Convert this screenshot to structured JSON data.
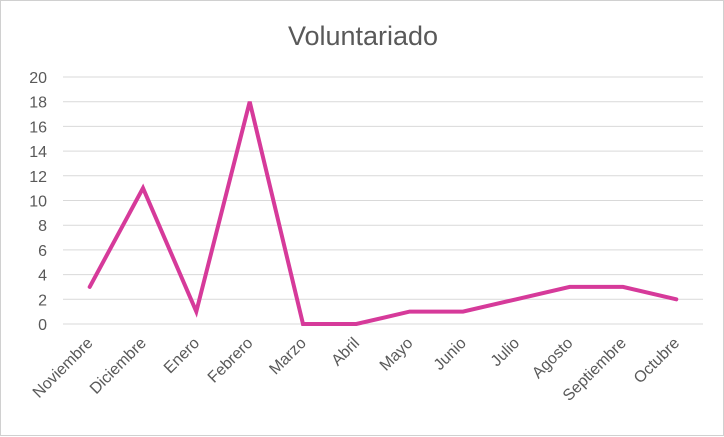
{
  "chart_data": {
    "type": "line",
    "title": "Voluntariado",
    "xlabel": "",
    "ylabel": "",
    "categories": [
      "Noviembre",
      "Diciembre",
      "Enero",
      "Febrero",
      "Marzo",
      "Abril",
      "Mayo",
      "Junio",
      "Julio",
      "Agosto",
      "Septiembre",
      "Octubre"
    ],
    "values": [
      3,
      11,
      1,
      18,
      0,
      0,
      1,
      1,
      2,
      3,
      3,
      2
    ],
    "ylim": [
      0,
      20
    ],
    "yticks": [
      "0",
      "2",
      "4",
      "6",
      "8",
      "10",
      "12",
      "14",
      "16",
      "18",
      "20"
    ],
    "grid": true,
    "legend": "none",
    "line_color": "#d63a9a"
  }
}
